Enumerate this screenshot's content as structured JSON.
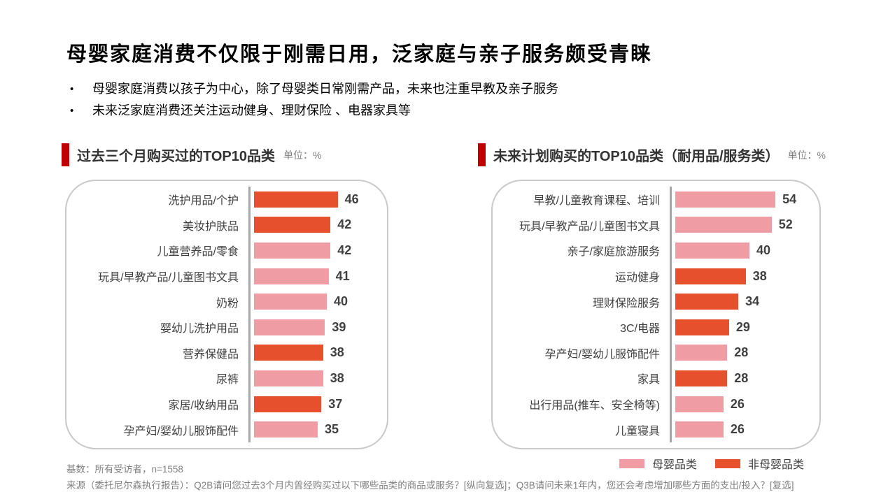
{
  "title": "母婴家庭消费不仅限于刚需日用，泛家庭与亲子服务颇受青睐",
  "bullets": [
    "母婴家庭消费以孩子为中心，除了母婴类日常刚需产品，未来也注重早教及亲子服务",
    "未来泛家庭消费还关注运动健身、理财保险 、电器家具等"
  ],
  "colors": {
    "accent_red": "#C00000",
    "bar_pink": "#F09CA4",
    "bar_orange": "#E6502D",
    "axis_gray": "#A6A6A6",
    "border_gray": "#C9C9C9",
    "text_dark": "#404040",
    "text_gray": "#808080"
  },
  "legend": {
    "items": [
      {
        "label": "母婴品类",
        "group": "maternal",
        "color": "#F09CA4"
      },
      {
        "label": "非母婴品类",
        "group": "non_maternal",
        "color": "#E6502D"
      }
    ]
  },
  "chart_data": [
    {
      "type": "bar",
      "orientation": "horizontal",
      "title": "过去三个月购买过的TOP10品类",
      "unit_label": "单位：%",
      "xlim": [
        0,
        60
      ],
      "grid": false,
      "categories": [
        "洗护用品/个护",
        "美妆护肤品",
        "儿童营养品/零食",
        "玩具/早教产品/儿童图书文具",
        "奶粉",
        "婴幼儿洗护用品",
        "营养保健品",
        "尿裤",
        "家居/收纳用品",
        "孕产妇/婴幼儿服饰配件"
      ],
      "values": [
        46,
        42,
        42,
        41,
        40,
        39,
        38,
        38,
        37,
        35
      ],
      "series_group": [
        "non_maternal",
        "non_maternal",
        "maternal",
        "maternal",
        "maternal",
        "maternal",
        "non_maternal",
        "maternal",
        "non_maternal",
        "maternal"
      ]
    },
    {
      "type": "bar",
      "orientation": "horizontal",
      "title": "未来计划购买的TOP10品类（耐用品/服务类）",
      "unit_label": "单位：%",
      "xlim": [
        0,
        60
      ],
      "grid": false,
      "categories": [
        "早教/儿童教育课程、培训",
        "玩具/早教产品/儿童图书文具",
        "亲子/家庭旅游服务",
        "运动健身",
        "理财保险服务",
        "3C/电器",
        "孕产妇/婴幼儿服饰配件",
        "家具",
        "出行用品(推车、安全椅等)",
        "儿童寝具"
      ],
      "values": [
        54,
        52,
        40,
        38,
        34,
        29,
        28,
        28,
        26,
        26
      ],
      "series_group": [
        "maternal",
        "maternal",
        "maternal",
        "non_maternal",
        "non_maternal",
        "non_maternal",
        "maternal",
        "non_maternal",
        "maternal",
        "maternal"
      ]
    }
  ],
  "footer": {
    "base_text": "基数：所有受访者，n=1558",
    "source_text": "来源（委托尼尔森执行报告）：Q2B请问您过去3个月内曾经购买过以下哪些品类的商品或服务？[纵向复选]；Q3B请问未来1年内，您还会考虑增加哪些方面的支出/投入？[复选]"
  }
}
